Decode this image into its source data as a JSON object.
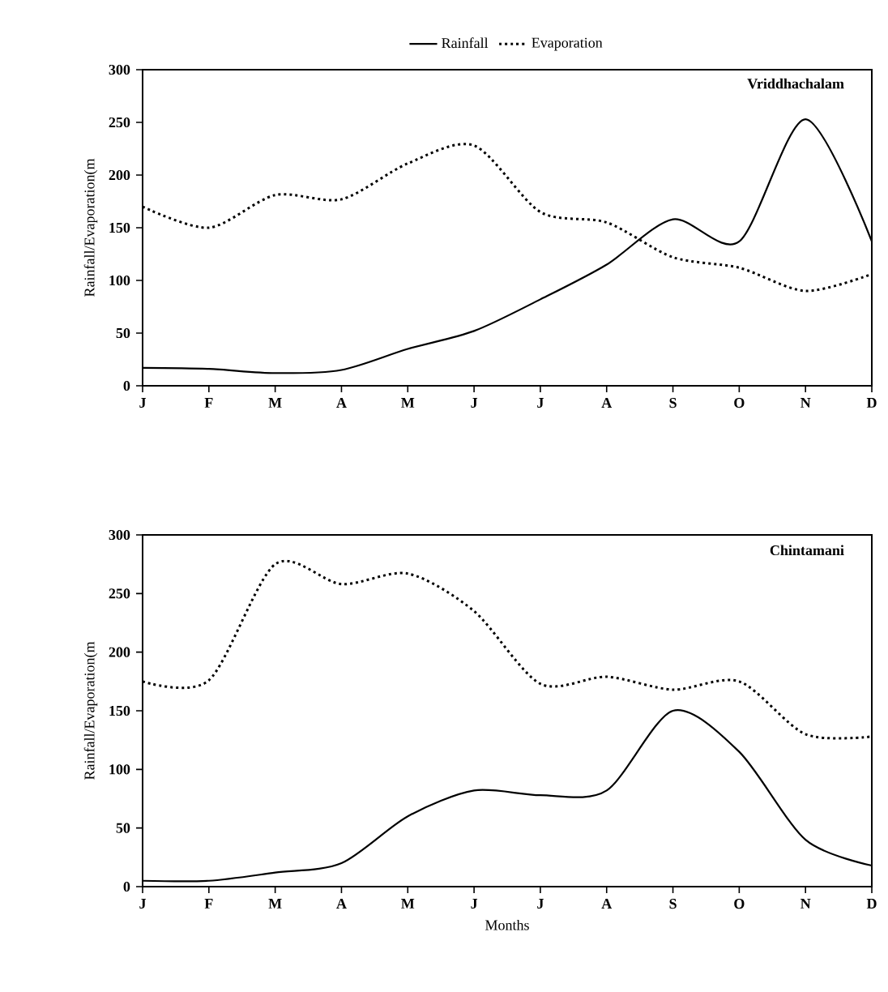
{
  "chart_data": [
    {
      "type": "line",
      "title": "Vriddhachalam",
      "ylabel": "Rainfall/Evaporation(m",
      "categories": [
        "J",
        "F",
        "M",
        "A",
        "M",
        "J",
        "J",
        "A",
        "S",
        "O",
        "N",
        "D"
      ],
      "series": [
        {
          "name": "Rainfall",
          "color": "#000000",
          "line_style": "solid",
          "values": [
            17,
            16,
            12,
            15,
            35,
            52,
            82,
            115,
            158,
            137,
            253,
            137
          ]
        },
        {
          "name": "Evaporation",
          "color": "#000000",
          "line_style": "dotted",
          "values": [
            170,
            150,
            181,
            177,
            211,
            228,
            165,
            155,
            122,
            112,
            90,
            106
          ]
        }
      ],
      "ylim": [
        0,
        300
      ],
      "yticks": [
        0,
        50,
        100,
        150,
        200,
        250,
        300
      ],
      "legend": "top",
      "grid": false,
      "marker": "none"
    },
    {
      "type": "line",
      "title": "Chintamani",
      "xlabel": "Months",
      "ylabel": "Rainfall/Evaporation(m",
      "categories": [
        "J",
        "F",
        "M",
        "A",
        "M",
        "J",
        "J",
        "A",
        "S",
        "O",
        "N",
        "D"
      ],
      "series": [
        {
          "color": "#000000",
          "line_style": "solid",
          "values": [
            5,
            5,
            12,
            20,
            60,
            82,
            78,
            82,
            150,
            115,
            40,
            18
          ]
        },
        {
          "color": "#000000",
          "line_style": "dotted",
          "values": [
            175,
            176,
            275,
            258,
            267,
            235,
            173,
            179,
            168,
            175,
            130,
            128
          ]
        }
      ],
      "ylim": [
        0,
        300
      ],
      "yticks": [
        0,
        50,
        100,
        150,
        200,
        250,
        300
      ],
      "legend": false,
      "grid": false,
      "marker": "none"
    }
  ]
}
